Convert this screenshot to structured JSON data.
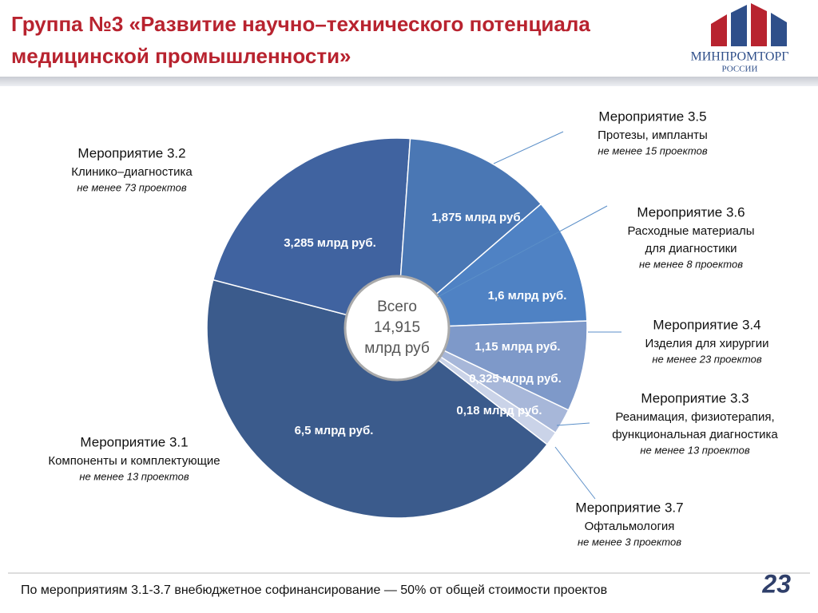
{
  "header": {
    "title_lines": [
      "Группа №3 «Развитие научно–технического потенциала",
      "медицинской промышленности»"
    ],
    "logo": "МИНПРОМТОРГ",
    "logo_sub": "РОССИИ"
  },
  "chart_data": {
    "type": "pie",
    "categories": [
      "Мероприятие 3.1",
      "Мероприятие 3.2",
      "Мероприятие 3.5",
      "Мероприятие 3.6",
      "Мероприятие 3.4",
      "Мероприятие 3.3",
      "Мероприятие 3.7"
    ],
    "descriptions": [
      [
        "Компоненты и комплектующие"
      ],
      [
        "Клинико–диагностика"
      ],
      [
        "Протезы,  импланты"
      ],
      [
        "Расходные материалы",
        "для диагностики"
      ],
      [
        "Изделия для хирургии"
      ],
      [
        "Реанимация, физиотерапия,",
        "функциональная диагностика"
      ],
      [
        "Офтальмология"
      ]
    ],
    "notes": [
      "не менее 13 проектов",
      "не менее 73 проектов",
      "не менее 15 проектов",
      "не менее 8 проектов",
      "не менее 23 проектов",
      "не менее 13 проектов",
      "не менее 3 проектов"
    ],
    "values": [
      6.5,
      3.285,
      1.875,
      1.6,
      1.15,
      0.325,
      0.18
    ],
    "value_labels": [
      "6,5 млрд руб.",
      "3,285 млрд руб.",
      "1,875 млрд руб.",
      "1,6 млрд руб.",
      "1,15 млрд руб.",
      "0,325 млрд руб.",
      "0,18 млрд руб."
    ],
    "colors": [
      "#3b5b8c",
      "#4063a0",
      "#4a77b4",
      "#4f82c4",
      "#7e99c9",
      "#a7b7d9",
      "#cad3e8"
    ],
    "center_text": [
      "Всего",
      "14,915",
      "млрд руб"
    ]
  },
  "footer": {
    "text": "По мероприятиям 3.1-3.7 внебюджетное софинансирование — 50% от общей стоимости проектов",
    "page": "23"
  }
}
